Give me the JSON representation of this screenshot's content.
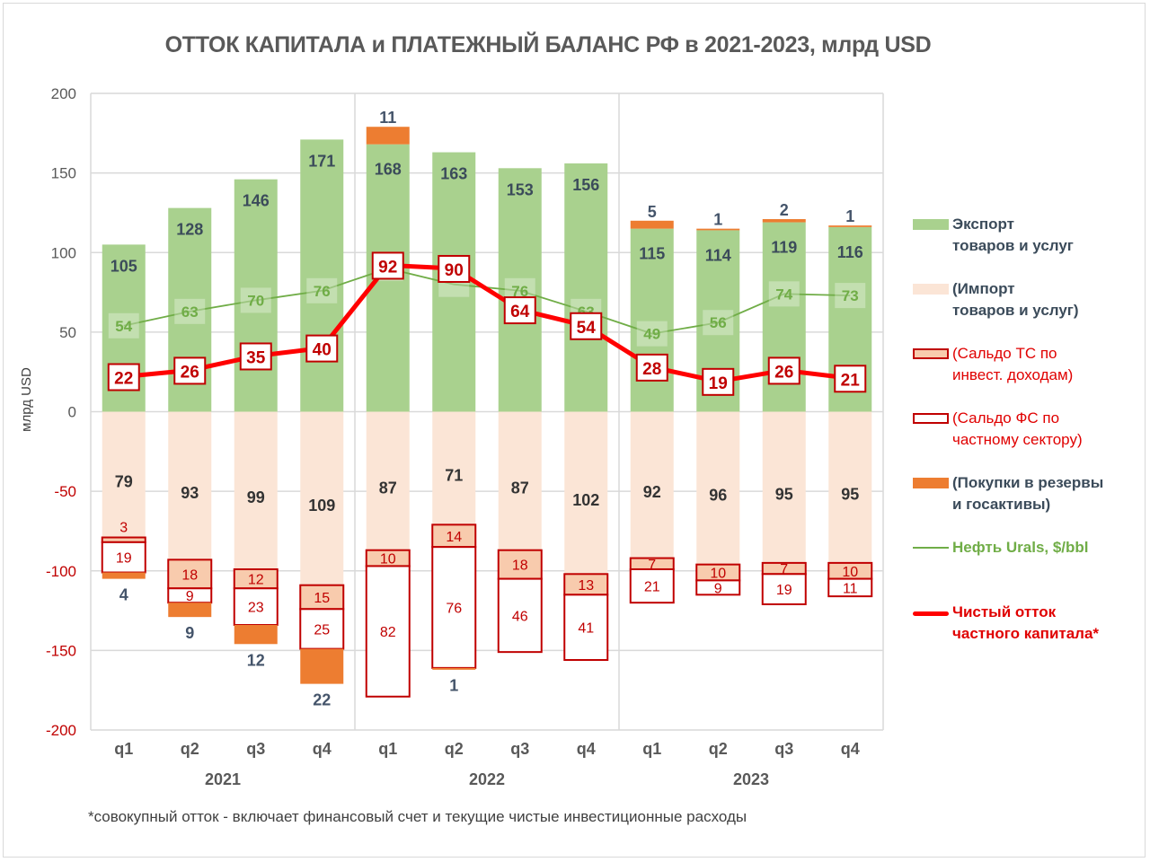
{
  "chart_data": {
    "type": "bar",
    "title": "ОТТОК КАПИТАЛА и ПЛАТЕЖНЫЙ БАЛАНС РФ в 2021-2023, млрд USD",
    "ylabel": "млрд USD",
    "xlabel": "",
    "ylim": [
      -200,
      200
    ],
    "yticks": [
      200,
      150,
      100,
      50,
      0,
      -50,
      -100,
      -150,
      -200
    ],
    "grid": true,
    "legend_position": "right",
    "categories": [
      "q1",
      "q2",
      "q3",
      "q4",
      "q1",
      "q2",
      "q3",
      "q4",
      "q1",
      "q2",
      "q3",
      "q4"
    ],
    "years": [
      {
        "label": "2021",
        "start": 0,
        "end": 3
      },
      {
        "label": "2022",
        "start": 4,
        "end": 7
      },
      {
        "label": "2023",
        "start": 8,
        "end": 11
      }
    ],
    "series": [
      {
        "name": "Экспорт товаров и услуг",
        "kind": "bar-positive",
        "color": "#a9d18e",
        "values": [
          105,
          128,
          146,
          171,
          168,
          163,
          153,
          156,
          115,
          114,
          119,
          116
        ]
      },
      {
        "name": "Покупки в резервы и госактивы (над экспортом)",
        "kind": "bar-positive-stack",
        "color": "#ed7d31",
        "values": [
          0,
          0,
          0,
          0,
          11,
          0,
          0,
          0,
          5,
          1,
          2,
          1
        ]
      },
      {
        "name": "(Импорт товаров и услуг)",
        "kind": "bar-negative",
        "color": "#fbe5d6",
        "values": [
          79,
          93,
          99,
          109,
          87,
          71,
          87,
          102,
          92,
          96,
          95,
          95
        ]
      },
      {
        "name": "(Сальдо ТС по инвест. доходам)",
        "kind": "bar-negative-stack",
        "color": "#f8cbad",
        "border": "#c00000",
        "values": [
          3,
          18,
          12,
          15,
          10,
          14,
          18,
          13,
          7,
          10,
          7,
          10
        ]
      },
      {
        "name": "(Сальдо ФС по частному сектору)",
        "kind": "bar-negative-stack",
        "color": "#ffffff",
        "border": "#c00000",
        "values": [
          19,
          9,
          23,
          25,
          82,
          76,
          46,
          41,
          21,
          9,
          19,
          11
        ]
      },
      {
        "name": "(Покупки в резервы и госактивы)",
        "kind": "bar-negative-stack",
        "color": "#ed7d31",
        "values": [
          4,
          9,
          12,
          22,
          0,
          1,
          0,
          0,
          0,
          0,
          0,
          0
        ],
        "labels": [
          "4",
          "9",
          "12",
          "22",
          "",
          "1",
          "",
          "",
          "",
          "",
          "",
          ""
        ]
      },
      {
        "name": "Нефть Urals, $/bbl",
        "kind": "line",
        "color": "#70ad47",
        "values": [
          54,
          63,
          70,
          76,
          90,
          80,
          76,
          63,
          49,
          56,
          74,
          73
        ],
        "labels": [
          "54",
          "63",
          "70",
          "76",
          "90",
          "",
          "76",
          "63",
          "49",
          "56",
          "74",
          "73"
        ]
      },
      {
        "name": "Чистый отток частного капитала*",
        "kind": "line-thick",
        "color": "#ff0000",
        "values": [
          22,
          26,
          35,
          40,
          92,
          90,
          64,
          54,
          28,
          19,
          26,
          21
        ]
      }
    ],
    "top_reserve_labels": [
      "",
      "",
      "",
      "",
      "11",
      "",
      "",
      "",
      "5",
      "1",
      "2",
      "1"
    ]
  },
  "legend": [
    {
      "label": "Экспорт\nтоваров и услуг",
      "color": "#a9d18e",
      "text_color": "#3b4b5a",
      "type": "box"
    },
    {
      "label": "(Импорт\nтоваров и услуг)",
      "color": "#fbe5d6",
      "text_color": "#3b4b5a",
      "type": "box"
    },
    {
      "label": "(Сальдо ТС по\nинвест. доходам)",
      "color": "#f8cbad",
      "border": "#c00000",
      "text_color": "#e00000",
      "type": "box-outline"
    },
    {
      "label": "(Сальдо ФС по\nчастному сектору)",
      "color": "#ffffff",
      "border": "#c00000",
      "text_color": "#e00000",
      "type": "box-outline"
    },
    {
      "label": "(Покупки в резервы\nи госактивы)",
      "color": "#ed7d31",
      "text_color": "#3b4b5a",
      "type": "box"
    },
    {
      "label": "Нефть Urals, $/bbl",
      "color": "#70ad47",
      "text_color": "#70ad47",
      "type": "line"
    },
    {
      "label": "Чистый отток\nчастного капитала*",
      "color": "#ff0000",
      "text_color": "#e00000",
      "type": "line-thick"
    }
  ],
  "footnote": "*совокупный отток - включает финансовый счет и текущие чистые инвестиционные  расходы"
}
